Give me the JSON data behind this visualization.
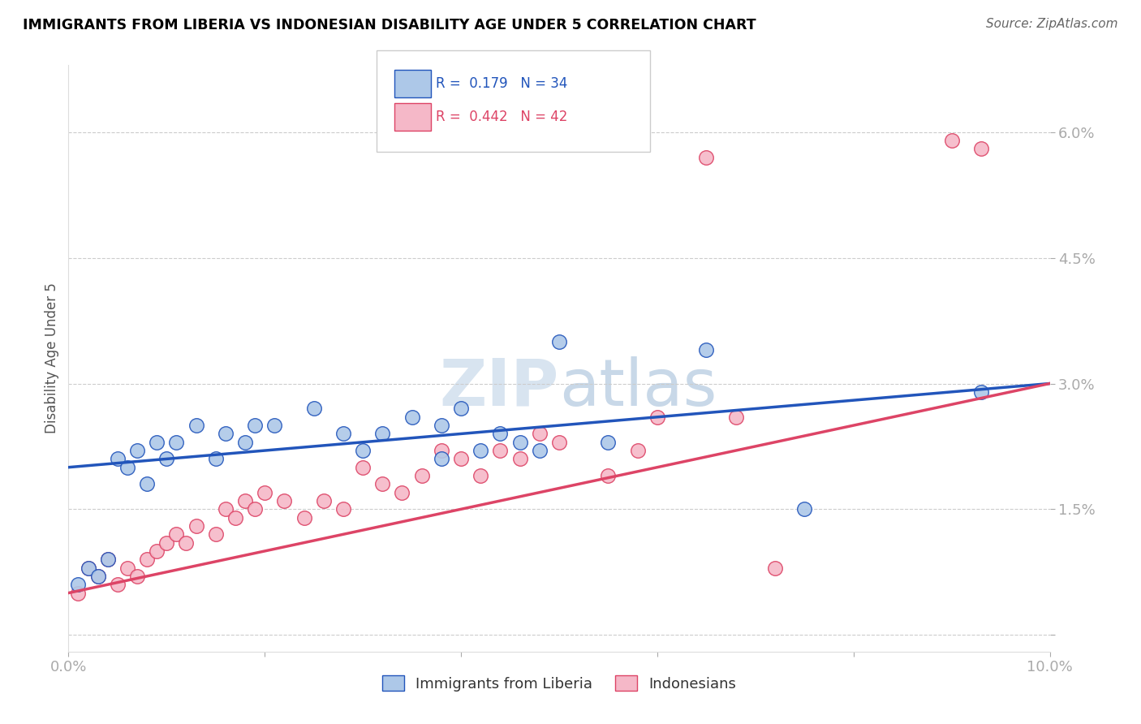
{
  "title": "IMMIGRANTS FROM LIBERIA VS INDONESIAN DISABILITY AGE UNDER 5 CORRELATION CHART",
  "source": "Source: ZipAtlas.com",
  "ylabel": "Disability Age Under 5",
  "xlim": [
    0.0,
    0.1
  ],
  "ylim": [
    -0.002,
    0.068
  ],
  "xticks": [
    0.0,
    0.02,
    0.04,
    0.06,
    0.08,
    0.1
  ],
  "xticklabels": [
    "0.0%",
    "",
    "",
    "",
    "",
    "10.0%"
  ],
  "yticks": [
    0.0,
    0.015,
    0.03,
    0.045,
    0.06
  ],
  "yticklabels": [
    "",
    "1.5%",
    "3.0%",
    "4.5%",
    "6.0%"
  ],
  "legend_labels": [
    "Immigrants from Liberia",
    "Indonesians"
  ],
  "R_liberia": 0.179,
  "N_liberia": 34,
  "R_indonesian": 0.442,
  "N_indonesian": 42,
  "color_liberia": "#adc8e8",
  "color_indonesian": "#f5b8c8",
  "line_color_liberia": "#2255bb",
  "line_color_indonesian": "#dd4466",
  "watermark_color": "#d8e4f0",
  "liberia_x": [
    0.001,
    0.002,
    0.003,
    0.004,
    0.005,
    0.006,
    0.007,
    0.008,
    0.009,
    0.01,
    0.011,
    0.013,
    0.015,
    0.016,
    0.018,
    0.019,
    0.021,
    0.025,
    0.028,
    0.03,
    0.032,
    0.035,
    0.038,
    0.04,
    0.042,
    0.044,
    0.046,
    0.048,
    0.05,
    0.038,
    0.055,
    0.065,
    0.075,
    0.093
  ],
  "liberia_y": [
    0.006,
    0.008,
    0.007,
    0.009,
    0.021,
    0.02,
    0.022,
    0.018,
    0.023,
    0.021,
    0.023,
    0.025,
    0.021,
    0.024,
    0.023,
    0.025,
    0.025,
    0.027,
    0.024,
    0.022,
    0.024,
    0.026,
    0.025,
    0.027,
    0.022,
    0.024,
    0.023,
    0.022,
    0.035,
    0.021,
    0.023,
    0.034,
    0.015,
    0.029
  ],
  "indonesian_x": [
    0.001,
    0.002,
    0.003,
    0.004,
    0.005,
    0.006,
    0.007,
    0.008,
    0.009,
    0.01,
    0.011,
    0.012,
    0.013,
    0.015,
    0.016,
    0.017,
    0.018,
    0.019,
    0.02,
    0.022,
    0.024,
    0.026,
    0.028,
    0.03,
    0.032,
    0.034,
    0.036,
    0.038,
    0.04,
    0.042,
    0.044,
    0.046,
    0.048,
    0.05,
    0.055,
    0.058,
    0.06,
    0.065,
    0.068,
    0.072,
    0.09,
    0.093
  ],
  "indonesian_y": [
    0.005,
    0.008,
    0.007,
    0.009,
    0.006,
    0.008,
    0.007,
    0.009,
    0.01,
    0.011,
    0.012,
    0.011,
    0.013,
    0.012,
    0.015,
    0.014,
    0.016,
    0.015,
    0.017,
    0.016,
    0.014,
    0.016,
    0.015,
    0.02,
    0.018,
    0.017,
    0.019,
    0.022,
    0.021,
    0.019,
    0.022,
    0.021,
    0.024,
    0.023,
    0.019,
    0.022,
    0.026,
    0.057,
    0.026,
    0.008,
    0.059,
    0.058
  ]
}
